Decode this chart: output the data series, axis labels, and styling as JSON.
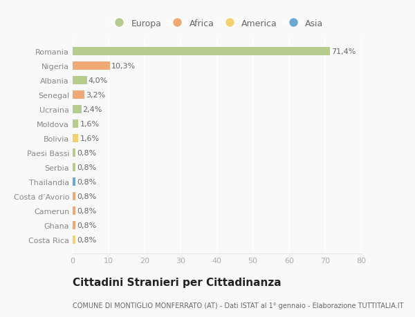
{
  "countries": [
    "Romania",
    "Nigeria",
    "Albania",
    "Senegal",
    "Ucraina",
    "Moldova",
    "Bolivia",
    "Paesi Bassi",
    "Serbia",
    "Thailandia",
    "Costa d’Avorio",
    "Camerun",
    "Ghana",
    "Costa Rica"
  ],
  "values": [
    71.4,
    10.3,
    4.0,
    3.2,
    2.4,
    1.6,
    1.6,
    0.8,
    0.8,
    0.8,
    0.8,
    0.8,
    0.8,
    0.8
  ],
  "labels": [
    "71,4%",
    "10,3%",
    "4,0%",
    "3,2%",
    "2,4%",
    "1,6%",
    "1,6%",
    "0,8%",
    "0,8%",
    "0,8%",
    "0,8%",
    "0,8%",
    "0,8%",
    "0,8%"
  ],
  "continents": [
    "Europa",
    "Africa",
    "Europa",
    "Africa",
    "Europa",
    "Europa",
    "America",
    "Europa",
    "Europa",
    "Asia",
    "Africa",
    "Africa",
    "Africa",
    "America"
  ],
  "continent_colors": {
    "Europa": "#b5cc8e",
    "Africa": "#f0a875",
    "America": "#f5d06e",
    "Asia": "#6ba8d4"
  },
  "legend_order": [
    "Europa",
    "Africa",
    "America",
    "Asia"
  ],
  "title": "Cittadini Stranieri per Cittadinanza",
  "subtitle": "COMUNE DI MONTIGLIO MONFERRATO (AT) - Dati ISTAT al 1° gennaio - Elaborazione TUTTITALIA.IT",
  "xlim": [
    0,
    80
  ],
  "xticks": [
    0,
    10,
    20,
    30,
    40,
    50,
    60,
    70,
    80
  ],
  "bg_color": "#f9f9f9",
  "grid_color": "#ffffff",
  "bar_height": 0.55,
  "label_fontsize": 8,
  "tick_fontsize": 8,
  "ylabel_fontsize": 8,
  "title_fontsize": 11,
  "subtitle_fontsize": 7
}
